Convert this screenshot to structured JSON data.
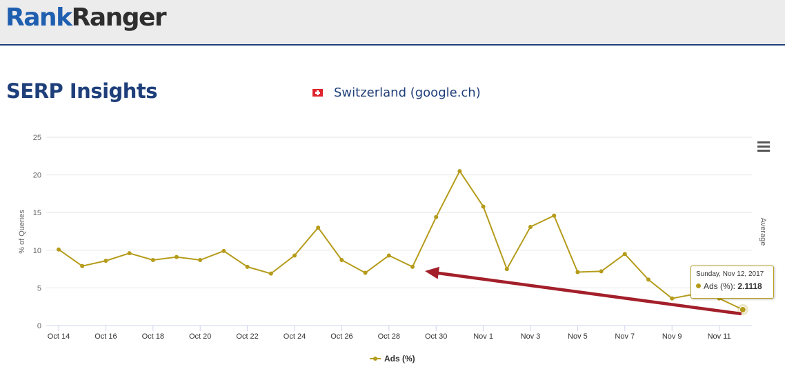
{
  "header": {
    "logo_part1": "Rank",
    "logo_part2": "Ranger"
  },
  "page": {
    "title": "SERP Insights",
    "country": "Switzerland (google.ch)"
  },
  "tooltip": {
    "date": "Sunday, Nov 12, 2017",
    "series_label": "Ads (%): ",
    "value_label": "2.1118"
  },
  "colors": {
    "series": "#b59b1a",
    "arrow": "#a31f2a",
    "brand_blue": "#1f3f7a"
  },
  "chart_data": {
    "type": "line",
    "ylabel": "% of Queries",
    "right_axis_label": "Average",
    "ylim": [
      0,
      25
    ],
    "yticks": [
      0,
      5,
      10,
      15,
      20,
      25
    ],
    "x": [
      "Oct 14",
      "Oct 15",
      "Oct 16",
      "Oct 17",
      "Oct 18",
      "Oct 19",
      "Oct 20",
      "Oct 21",
      "Oct 22",
      "Oct 23",
      "Oct 24",
      "Oct 25",
      "Oct 26",
      "Oct 27",
      "Oct 28",
      "Oct 29",
      "Oct 30",
      "Oct 31",
      "Nov 1",
      "Nov 2",
      "Nov 3",
      "Nov 4",
      "Nov 5",
      "Nov 6",
      "Nov 7",
      "Nov 8",
      "Nov 9",
      "Nov 10",
      "Nov 11",
      "Nov 12"
    ],
    "xticks": [
      "Oct 14",
      "Oct 16",
      "Oct 18",
      "Oct 20",
      "Oct 22",
      "Oct 24",
      "Oct 26",
      "Oct 28",
      "Oct 30",
      "Nov 1",
      "Nov 3",
      "Nov 5",
      "Nov 7",
      "Nov 9",
      "Nov 11"
    ],
    "series": [
      {
        "name": "Ads (%)",
        "values": [
          10.1,
          7.9,
          8.6,
          9.6,
          8.7,
          9.1,
          8.7,
          9.9,
          7.8,
          6.9,
          9.3,
          13.0,
          8.7,
          7.0,
          9.3,
          7.8,
          14.4,
          20.5,
          15.8,
          7.5,
          13.1,
          14.6,
          7.1,
          7.2,
          9.5,
          6.1,
          3.6,
          4.2,
          3.6,
          2.1118
        ]
      }
    ],
    "grid": true,
    "legend": "bottom-center",
    "annotation": "arrow from Nov 12 point toward Oct 29 point"
  }
}
